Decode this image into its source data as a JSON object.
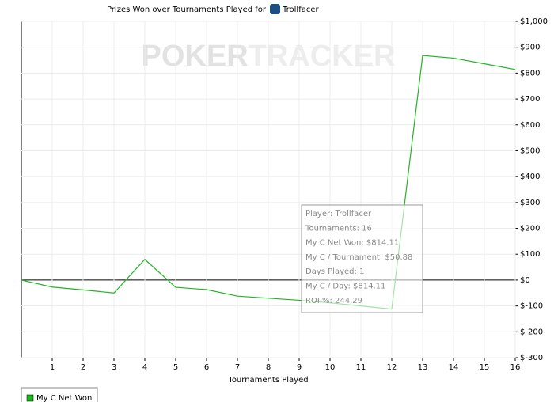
{
  "chart_data": {
    "type": "line",
    "title": "Prizes Won over Tournaments Played for",
    "player": "Trollfacer",
    "watermark": [
      "POKER",
      "TRACKER"
    ],
    "x_label": "Tournaments Played",
    "x": [
      0,
      1,
      2,
      3,
      4,
      5,
      6,
      7,
      8,
      9,
      10,
      11,
      12,
      13,
      14,
      15,
      16
    ],
    "series": [
      {
        "name": "My C Net Won",
        "color": "#22b522",
        "values": [
          0,
          -27,
          -38,
          -50,
          80,
          -28,
          -37,
          -62,
          -70,
          -78,
          -88,
          -100,
          -112,
          868,
          858,
          836,
          814
        ]
      }
    ],
    "xlim": [
      0,
      16
    ],
    "xticks": [
      1,
      2,
      3,
      4,
      5,
      6,
      7,
      8,
      9,
      10,
      11,
      12,
      13,
      14,
      15,
      16
    ],
    "ylim": [
      -300,
      1000
    ],
    "yticks": [
      {
        "value": -300,
        "label": "$-300"
      },
      {
        "value": -200,
        "label": "$-200"
      },
      {
        "value": -100,
        "label": "$-100"
      },
      {
        "value": 0,
        "label": "$0"
      },
      {
        "value": 100,
        "label": "$100"
      },
      {
        "value": 200,
        "label": "$200"
      },
      {
        "value": 300,
        "label": "$300"
      },
      {
        "value": 400,
        "label": "$400"
      },
      {
        "value": 500,
        "label": "$500"
      },
      {
        "value": 600,
        "label": "$600"
      },
      {
        "value": 700,
        "label": "$700"
      },
      {
        "value": 800,
        "label": "$800"
      },
      {
        "value": 900,
        "label": "$900"
      },
      {
        "value": 1000,
        "label": "$1,000"
      }
    ],
    "grid": true,
    "tooltip": [
      "Player: Trollfacer",
      "Tournaments: 16",
      "My C Net Won: $814.11",
      "My C / Tournament: $50.88",
      "Days Played: 1",
      "My C / Day: $814.11",
      "ROI %: 244.29"
    ]
  }
}
